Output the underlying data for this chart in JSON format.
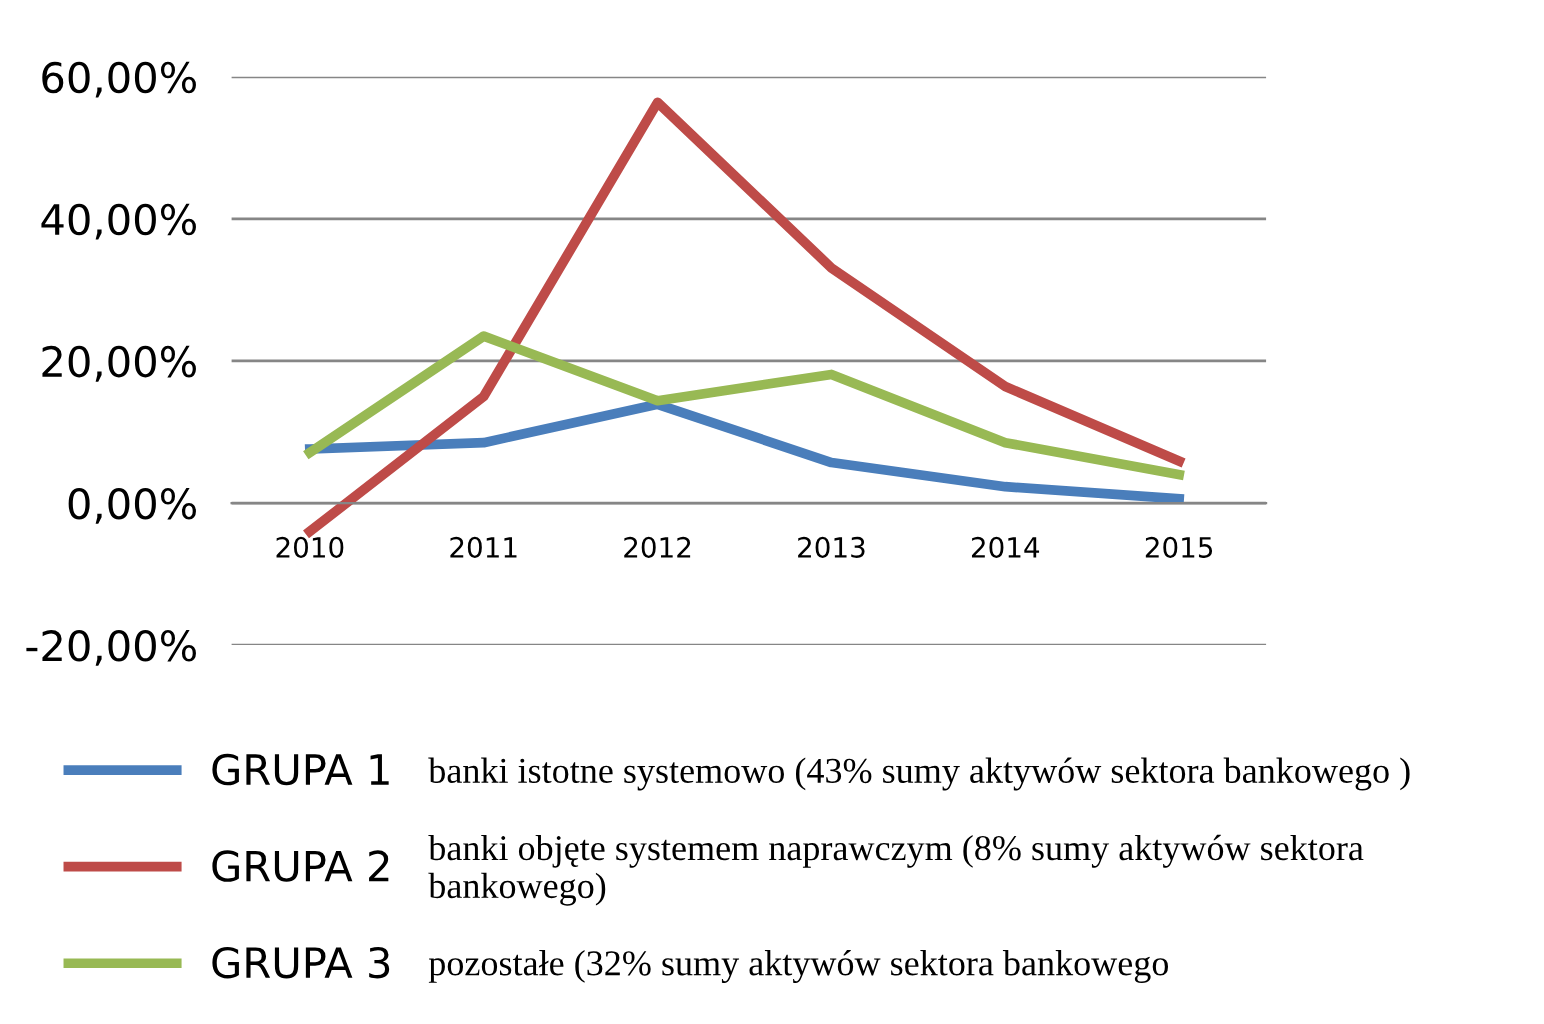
{
  "chart_data": {
    "type": "line",
    "categories": [
      "2010",
      "2011",
      "2012",
      "2013",
      "2014",
      "2015"
    ],
    "series": [
      {
        "name": "GRUPA 1",
        "color": "#4a7ebb",
        "values": [
          7.6,
          8.5,
          13.9,
          5.7,
          2.3,
          0.6
        ]
      },
      {
        "name": "GRUPA 2",
        "color": "#be4b48",
        "values": [
          -4.0,
          15.0,
          56.4,
          33.1,
          16.4,
          5.9
        ]
      },
      {
        "name": "GRUPA 3",
        "color": "#98b954",
        "values": [
          7.1,
          23.5,
          14.4,
          18.1,
          8.5,
          4.0
        ]
      }
    ],
    "ylim": [
      -20,
      60
    ],
    "yticks": [
      {
        "value": -20,
        "label": "-20,00%"
      },
      {
        "value": 0,
        "label": "0,00%"
      },
      {
        "value": 20,
        "label": "20,00%"
      },
      {
        "value": 40,
        "label": "40,00%"
      },
      {
        "value": 60,
        "label": "60,00%"
      }
    ],
    "grid": "y",
    "legend": "bottom",
    "marker": "none",
    "line_style": "solid",
    "annotations": [
      "banki istotne systemowo (43% sumy aktywów sektora bankowego )",
      "banki objęte systemem naprawczym (8% sumy aktywów sektora bankowego)",
      "pozostałe (32% sumy aktywów sektora bankowego"
    ]
  }
}
